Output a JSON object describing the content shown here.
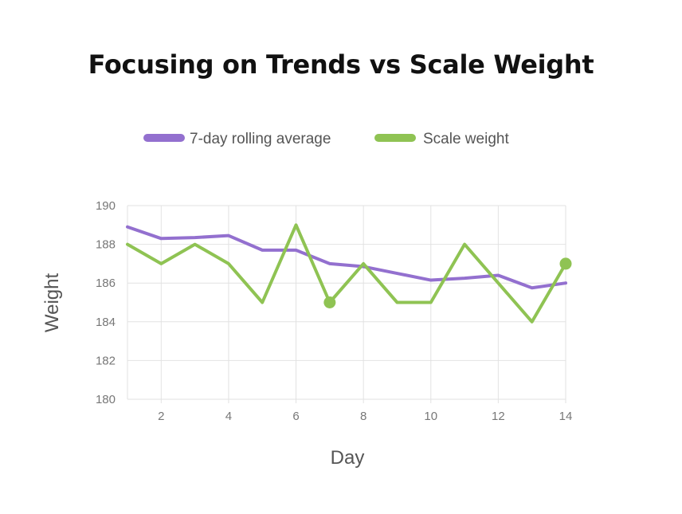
{
  "chart_data": {
    "type": "line",
    "title": "Focusing on Trends vs Scale Weight",
    "xlabel": "Day",
    "ylabel": "Weight",
    "xlim": [
      1,
      14
    ],
    "ylim": [
      180,
      190
    ],
    "x_ticks": [
      2,
      4,
      6,
      8,
      10,
      12,
      14
    ],
    "y_ticks": [
      180,
      182,
      184,
      186,
      188,
      190
    ],
    "grid": true,
    "legend_position": "top",
    "x": [
      1,
      2,
      3,
      4,
      5,
      6,
      7,
      8,
      9,
      10,
      11,
      12,
      13,
      14
    ],
    "series": [
      {
        "name": "7-day rolling average",
        "color": "#9370cf",
        "values": [
          188.9,
          188.3,
          188.35,
          188.45,
          187.7,
          187.7,
          187.0,
          186.85,
          186.5,
          186.15,
          186.25,
          186.4,
          185.75,
          186.0
        ],
        "highlight_points": []
      },
      {
        "name": "Scale weight",
        "color": "#8fc353",
        "values": [
          188,
          187,
          188,
          187,
          185,
          189,
          185,
          187,
          185,
          185,
          188,
          186,
          184,
          187
        ],
        "highlight_points": [
          7,
          14
        ]
      }
    ]
  }
}
